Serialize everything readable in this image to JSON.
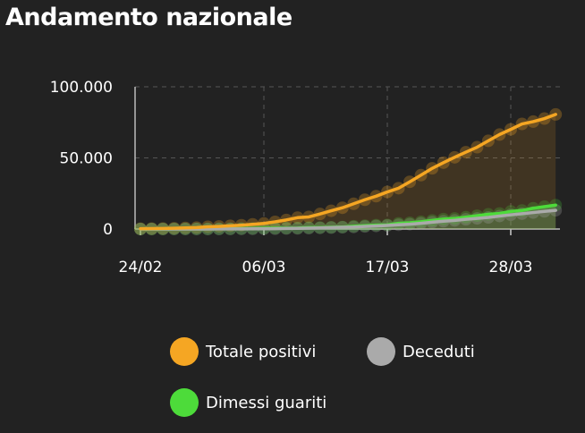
{
  "title": "Andamento nazionale",
  "chart_data": {
    "type": "area",
    "xlabel": "",
    "ylabel": "",
    "ylim": [
      0,
      100000
    ],
    "yticks": [
      {
        "value": 0,
        "label": "0"
      },
      {
        "value": 50000,
        "label": "50.000"
      },
      {
        "value": 100000,
        "label": "100.000"
      }
    ],
    "xticks": [
      {
        "index": 0,
        "label": "24/02"
      },
      {
        "index": 11,
        "label": "06/03"
      },
      {
        "index": 22,
        "label": "17/03"
      },
      {
        "index": 33,
        "label": "28/03"
      }
    ],
    "grid": true,
    "legend_position": "bottom",
    "x": [
      "24/02",
      "25/02",
      "26/02",
      "27/02",
      "28/02",
      "29/02",
      "01/03",
      "02/03",
      "03/03",
      "04/03",
      "05/03",
      "06/03",
      "07/03",
      "08/03",
      "09/03",
      "10/03",
      "11/03",
      "12/03",
      "13/03",
      "14/03",
      "15/03",
      "16/03",
      "17/03",
      "18/03",
      "19/03",
      "20/03",
      "21/03",
      "22/03",
      "23/03",
      "24/03",
      "25/03",
      "26/03",
      "27/03",
      "28/03",
      "29/03",
      "30/03",
      "31/03",
      "01/04"
    ],
    "series": [
      {
        "name": "Totale positivi",
        "color": "#f5a623",
        "values": [
          221,
          311,
          385,
          588,
          821,
          1049,
          1577,
          1835,
          2263,
          2706,
          3296,
          3916,
          5061,
          6387,
          7985,
          8514,
          10590,
          12839,
          14955,
          17750,
          20603,
          23073,
          26062,
          28710,
          33190,
          37860,
          42681,
          46638,
          50418,
          54030,
          57521,
          62013,
          66414,
          70065,
          73880,
          75528,
          77635,
          80572
        ]
      },
      {
        "name": "Deceduti",
        "color": "#aaaaaa",
        "values": [
          7,
          10,
          12,
          17,
          21,
          29,
          34,
          52,
          79,
          107,
          148,
          197,
          233,
          366,
          463,
          631,
          827,
          1016,
          1266,
          1441,
          1809,
          2158,
          2503,
          2978,
          3405,
          4032,
          4825,
          5476,
          6077,
          6820,
          7503,
          8165,
          9134,
          10023,
          10779,
          11591,
          12428,
          13155
        ]
      },
      {
        "name": "Dimessi guariti",
        "color": "#4ddb3a",
        "values": [
          1,
          1,
          3,
          45,
          46,
          50,
          83,
          149,
          160,
          276,
          414,
          523,
          589,
          622,
          724,
          1004,
          1045,
          1258,
          1439,
          1966,
          2335,
          2749,
          2941,
          4025,
          4440,
          5129,
          6072,
          7024,
          7432,
          8326,
          9362,
          10361,
          10950,
          12384,
          13030,
          14620,
          15729,
          16847
        ]
      }
    ]
  },
  "legend": {
    "items": [
      {
        "label": "Totale positivi",
        "color": "#f5a623"
      },
      {
        "label": "Deceduti",
        "color": "#aaaaaa"
      },
      {
        "label": "Dimessi guariti",
        "color": "#4ddb3a"
      }
    ]
  }
}
